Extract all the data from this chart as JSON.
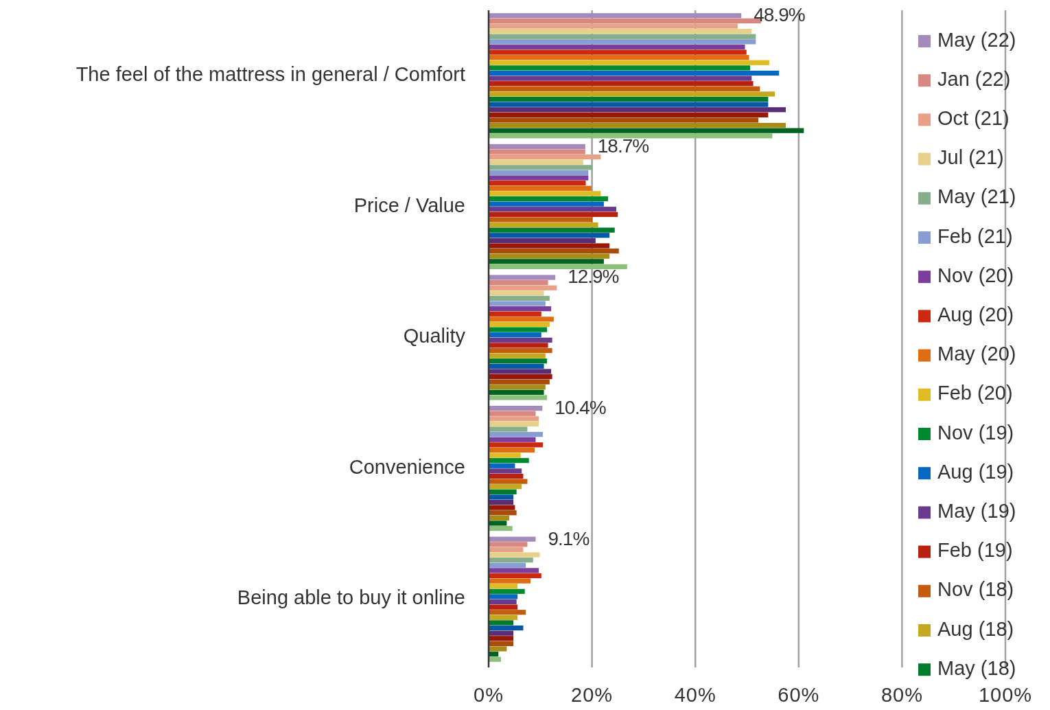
{
  "chart_data": {
    "type": "bar",
    "orientation": "horizontal",
    "categories": [
      "The feel of the mattress in general / Comfort",
      "Price / Value",
      "Quality",
      "Convenience",
      "Being able to buy it online"
    ],
    "xlim": [
      0,
      100
    ],
    "xticks": [
      {
        "value": 0,
        "label": "0%"
      },
      {
        "value": 20,
        "label": "20%"
      },
      {
        "value": 40,
        "label": "40%"
      },
      {
        "value": 60,
        "label": "60%"
      },
      {
        "value": 80,
        "label": "80%"
      },
      {
        "value": 100,
        "label": "100%"
      }
    ],
    "grid": "x",
    "legend": "right",
    "series": [
      {
        "name": "May (22)",
        "color": "#a48bbb",
        "values": [
          48.9,
          18.7,
          12.9,
          10.4,
          9.1
        ],
        "value_labels": [
          "48.9%",
          "18.7%",
          "12.9%",
          "10.4%",
          "9.1%"
        ]
      },
      {
        "name": "Jan (22)",
        "color": "#d88880",
        "values": [
          52.7,
          18.7,
          11.5,
          9.1,
          7.5
        ]
      },
      {
        "name": "Oct (21)",
        "color": "#e8a088",
        "values": [
          48.2,
          21.7,
          13.2,
          9.7,
          6.7
        ]
      },
      {
        "name": "Jul (21)",
        "color": "#e6d08a",
        "values": [
          50.9,
          18.3,
          10.7,
          9.7,
          9.9
        ]
      },
      {
        "name": "May (21)",
        "color": "#86ae8a",
        "values": [
          51.7,
          20.1,
          11.8,
          7.5,
          8.6
        ]
      },
      {
        "name": "Feb (21)",
        "color": "#879ed2",
        "values": [
          51.7,
          19.3,
          11.0,
          10.5,
          7.2
        ]
      },
      {
        "name": "Nov (20)",
        "color": "#7b3f9b",
        "values": [
          49.6,
          19.3,
          12.1,
          9.1,
          9.7
        ]
      },
      {
        "name": "Aug (20)",
        "color": "#cc2a10",
        "values": [
          49.9,
          18.8,
          10.2,
          10.5,
          10.2
        ]
      },
      {
        "name": "May (20)",
        "color": "#e06c14",
        "values": [
          50.4,
          19.9,
          12.6,
          8.9,
          8.1
        ]
      },
      {
        "name": "Feb (20)",
        "color": "#e0bc24",
        "values": [
          54.3,
          21.7,
          11.8,
          6.2,
          5.6
        ]
      },
      {
        "name": "Nov (19)",
        "color": "#008a30",
        "values": [
          50.6,
          23.1,
          11.3,
          7.8,
          7.0
        ]
      },
      {
        "name": "Aug (19)",
        "color": "#0868c0",
        "values": [
          56.2,
          22.3,
          10.2,
          5.1,
          5.6
        ]
      },
      {
        "name": "May (19)",
        "color": "#6a3a8c",
        "values": [
          50.9,
          24.7,
          12.3,
          6.4,
          5.4
        ]
      },
      {
        "name": "Feb (19)",
        "color": "#b82010",
        "values": [
          51.2,
          25.0,
          11.5,
          6.7,
          5.6
        ]
      },
      {
        "name": "Nov (18)",
        "color": "#c45c10",
        "values": [
          52.5,
          20.1,
          12.3,
          7.5,
          7.2
        ]
      },
      {
        "name": "Aug (18)",
        "color": "#c4a820",
        "values": [
          55.4,
          21.2,
          11.0,
          6.4,
          5.6
        ]
      },
      {
        "name": "May (18)",
        "color": "#007a2c",
        "values": [
          54.1,
          24.4,
          11.3,
          5.4,
          4.8
        ]
      },
      {
        "color": "#0858a8",
        "values": [
          54.1,
          23.4,
          10.7,
          4.8,
          6.7
        ]
      },
      {
        "color": "#5a2e74",
        "values": [
          57.5,
          20.7,
          12.1,
          4.8,
          4.8
        ]
      },
      {
        "color": "#981808",
        "values": [
          54.1,
          23.4,
          12.3,
          5.1,
          4.8
        ]
      },
      {
        "color": "#a84c0c",
        "values": [
          52.2,
          25.2,
          11.8,
          5.4,
          4.8
        ]
      },
      {
        "color": "#a88c18",
        "values": [
          57.5,
          23.4,
          11.0,
          4.0,
          3.5
        ]
      },
      {
        "color": "#006420",
        "values": [
          61.0,
          22.3,
          10.7,
          3.5,
          1.9
        ]
      },
      {
        "color": "#8cc07c",
        "values": [
          54.9,
          26.8,
          11.3,
          4.6,
          2.4
        ]
      }
    ]
  }
}
